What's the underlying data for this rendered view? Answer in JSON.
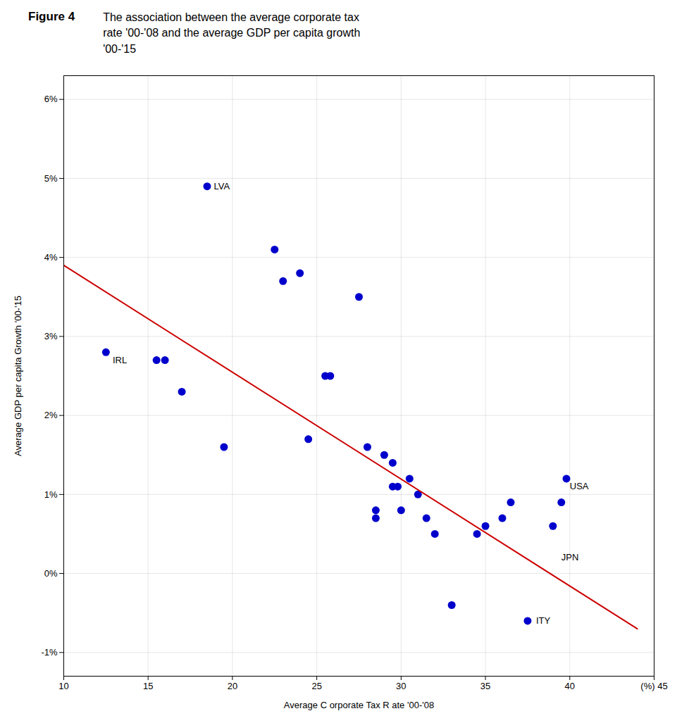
{
  "chart_data": {
    "type": "scatter",
    "title": "Figure 4",
    "subtitle": "The association between the average corporate tax\nrate '00-'08 and the average GDP per capita growth\n'00-'15",
    "xlabel": "Average C orporate Tax R ate '00-'08",
    "ylabel": "Average GDP per capita Growth '00-'15",
    "xlim": [
      10,
      45
    ],
    "ylim": [
      -0.013,
      0.063
    ],
    "xticks": [
      10,
      15,
      20,
      25,
      30,
      35,
      40,
      {
        "value": 45,
        "label": "(%) 45"
      }
    ],
    "yticks": [
      {
        "value": -0.01,
        "label": "-1%"
      },
      {
        "value": 0.0,
        "label": "0%"
      },
      {
        "value": 0.01,
        "label": "1%"
      },
      {
        "value": 0.02,
        "label": "2%"
      },
      {
        "value": 0.03,
        "label": "3%"
      },
      {
        "value": 0.04,
        "label": "4%"
      },
      {
        "value": 0.05,
        "label": "5%"
      },
      {
        "value": 0.06,
        "label": "6%"
      }
    ],
    "grid": true,
    "series": [
      {
        "type": "scatter",
        "color": "#0000CC",
        "x": [
          12.5,
          15.5,
          16.0,
          17.0,
          18.5,
          19.5,
          22.5,
          23.0,
          24.0,
          24.5,
          25.5,
          25.8,
          27.5,
          28.0,
          28.5,
          28.5,
          29.0,
          29.5,
          29.5,
          29.8,
          30.0,
          30.5,
          31.0,
          31.5,
          32.0,
          33.0,
          34.5,
          35.0,
          36.0,
          36.5,
          37.5,
          39.0,
          39.5,
          39.8
        ],
        "values": [
          0.028,
          0.027,
          0.027,
          0.023,
          0.049,
          0.016,
          0.041,
          0.037,
          0.038,
          0.017,
          0.025,
          0.025,
          0.035,
          0.016,
          0.008,
          0.007,
          0.015,
          0.014,
          0.011,
          0.011,
          0.008,
          0.012,
          0.01,
          0.007,
          0.005,
          -0.004,
          0.005,
          0.006,
          0.007,
          0.009,
          -0.006,
          0.006,
          0.009,
          0.012
        ]
      },
      {
        "type": "line",
        "color": "#CC0000",
        "x": [
          10,
          44
        ],
        "values": [
          0.039,
          -0.007
        ]
      }
    ],
    "annotations": [
      {
        "text": "LVA",
        "x": 18.9,
        "y": 0.049
      },
      {
        "text": "IRL",
        "x": 12.9,
        "y": 0.027
      },
      {
        "text": "USA",
        "x": 40.0,
        "y": 0.011
      },
      {
        "text": "JPN",
        "x": 39.5,
        "y": 0.002
      },
      {
        "text": "ITY",
        "x": 38.0,
        "y": -0.006
      }
    ]
  }
}
